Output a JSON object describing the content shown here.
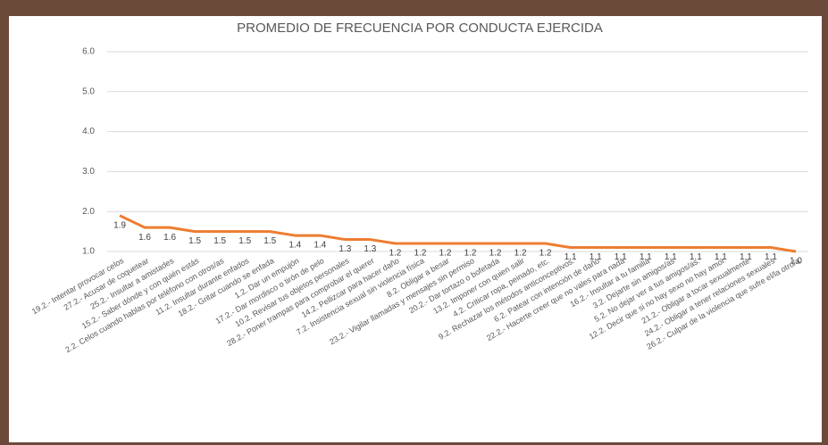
{
  "chart_data": {
    "type": "line",
    "title": "PROMEDIO DE FRECUENCIA POR CONDUCTA EJERCIDA",
    "categories": [
      "19.2.- Intentar provocar celos",
      "27.2.- Acusar de coquetear",
      "25.2.- Insultar a amistades",
      "15.2.- Saber dónde y con quién estás",
      "2.2. Celos cuando hablas por teléfono con otros/as",
      "11.2. Insultar durante enfados",
      "18.2.- Gritar cuando se enfada",
      "1.2. Dar un empujón",
      "17.2.- Dar mordisco o tirón de pelo",
      "10.2. Revisar tus objetos personales",
      "28.2.- Poner trampas para comprobar el querer",
      "14.2. Pellizcar para hacer daño",
      "7.2. Insistencia sexual sin violencia física",
      "8.2. Obligar a besar",
      "23.2.- Vigilar llamadas y mensajes sin permiso",
      "20.2.- Dar tortazo o bofetada",
      "13.2. Imponer con quien salir",
      "4.2. Criticar ropa, peinado, etc.",
      "9.2. Rechazar los métodos anticonceptivos.",
      "6.2. Patear con intención de daño",
      "22.2.- Hacerte creer que no vales para nada",
      "16.2.- Insultar a tu familia",
      "3.2. Dejarte sin amigos/as",
      "5.2. No dejar ver a tus amigos/as.",
      "12.2. Decir que si no hay sexo no hay amor",
      "21.2.- Obligar a tocar sexualmente",
      "24.2.- Obligar a tener relaciones sexuales",
      "26.2.- Culpar de la violencia que sufre el/la otro/a"
    ],
    "values": [
      1.9,
      1.6,
      1.6,
      1.5,
      1.5,
      1.5,
      1.5,
      1.4,
      1.4,
      1.3,
      1.3,
      1.2,
      1.2,
      1.2,
      1.2,
      1.2,
      1.2,
      1.2,
      1.1,
      1.1,
      1.1,
      1.1,
      1.1,
      1.1,
      1.1,
      1.1,
      1.1,
      1.0
    ],
    "value_labels": [
      "1.9",
      "1.6",
      "1.6",
      "1.5",
      "1.5",
      "1.5",
      "1.5",
      "1.4",
      "1.4",
      "1.3",
      "1.3",
      "1.2",
      "1.2",
      "1.2",
      "1.2",
      "1.2",
      "1.2",
      "1.2",
      "1.1",
      "1.1",
      "1.1",
      "1.1",
      "1.1",
      "1.1",
      "1.1",
      "1.1",
      "1.1",
      "1.0"
    ],
    "color": "#ed7d31",
    "ylim": [
      1,
      6
    ],
    "yticks": [
      {
        "value": 1,
        "label": "1.0"
      },
      {
        "value": 2,
        "label": "2.0"
      },
      {
        "value": 3,
        "label": "3.0"
      },
      {
        "value": 4,
        "label": "4.0"
      },
      {
        "value": 5,
        "label": "5.0"
      },
      {
        "value": 6,
        "label": "6.0"
      }
    ],
    "grid": true
  }
}
